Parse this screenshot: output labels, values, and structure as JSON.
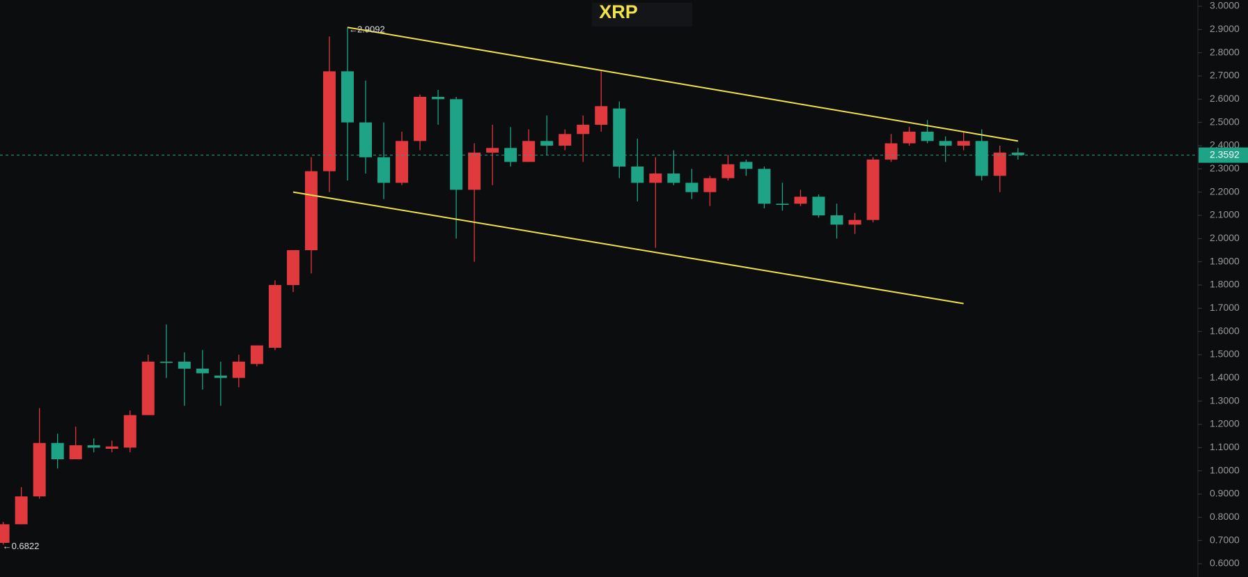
{
  "chart_data": {
    "type": "candlestick",
    "title": "XRP",
    "open": [
      0.69,
      0.77,
      0.89,
      1.12,
      1.05,
      1.11,
      1.095,
      1.1,
      1.24,
      1.47,
      1.47,
      1.44,
      1.41,
      1.4,
      1.46,
      1.53,
      1.8,
      1.95,
      2.29,
      2.72,
      2.5,
      2.35,
      2.24,
      2.42,
      2.61,
      2.6,
      2.21,
      2.37,
      2.39,
      2.33,
      2.42,
      2.4,
      2.45,
      2.49,
      2.56,
      2.31,
      2.24,
      2.28,
      2.24,
      2.2,
      2.26,
      2.33,
      2.3,
      2.15,
      2.15,
      2.18,
      2.1,
      2.06,
      2.08,
      2.34,
      2.41,
      2.46,
      2.42,
      2.4,
      2.42,
      2.27,
      2.37
    ],
    "high": [
      0.78,
      0.93,
      1.27,
      1.16,
      1.19,
      1.14,
      1.13,
      1.26,
      1.5,
      1.63,
      1.51,
      1.52,
      1.47,
      1.5,
      1.54,
      1.82,
      1.95,
      2.35,
      2.87,
      2.9092,
      2.68,
      2.5,
      2.46,
      2.62,
      2.64,
      2.61,
      2.41,
      2.49,
      2.48,
      2.47,
      2.53,
      2.47,
      2.53,
      2.72,
      2.59,
      2.43,
      2.35,
      2.38,
      2.3,
      2.27,
      2.36,
      2.34,
      2.31,
      2.24,
      2.21,
      2.19,
      2.15,
      2.11,
      2.35,
      2.45,
      2.48,
      2.51,
      2.44,
      2.46,
      2.47,
      2.4,
      2.39
    ],
    "low": [
      0.6822,
      0.77,
      0.88,
      1.01,
      1.05,
      1.08,
      1.08,
      1.08,
      1.24,
      1.4,
      1.28,
      1.35,
      1.28,
      1.36,
      1.45,
      1.52,
      1.77,
      1.85,
      2.2,
      2.25,
      2.28,
      2.17,
      2.23,
      2.38,
      2.49,
      2.0,
      1.9,
      2.23,
      2.31,
      2.33,
      2.36,
      2.38,
      2.33,
      2.46,
      2.26,
      2.16,
      1.96,
      2.23,
      2.17,
      2.14,
      2.25,
      2.27,
      2.13,
      2.12,
      2.14,
      2.09,
      2.0,
      2.02,
      2.07,
      2.33,
      2.4,
      2.41,
      2.33,
      2.38,
      2.25,
      2.2,
      2.34
    ],
    "close": [
      0.77,
      0.89,
      1.12,
      1.05,
      1.11,
      1.1,
      1.105,
      1.24,
      1.47,
      1.465,
      1.44,
      1.42,
      1.4,
      1.47,
      1.54,
      1.8,
      1.95,
      2.29,
      2.72,
      2.5,
      2.35,
      2.24,
      2.42,
      2.61,
      2.6,
      2.21,
      2.37,
      2.39,
      2.33,
      2.42,
      2.4,
      2.45,
      2.49,
      2.57,
      2.31,
      2.24,
      2.28,
      2.24,
      2.2,
      2.26,
      2.32,
      2.3,
      2.15,
      2.145,
      2.18,
      2.1,
      2.06,
      2.08,
      2.34,
      2.41,
      2.46,
      2.42,
      2.4,
      2.42,
      2.27,
      2.37,
      2.3592
    ],
    "up_color": "#e0393e",
    "down_color": "#1fa386",
    "trendlines": [
      {
        "start": [
          19,
          2.9092
        ],
        "end": [
          56,
          2.42
        ],
        "color": "#f2e24a"
      },
      {
        "start": [
          16,
          2.2
        ],
        "end": [
          53,
          1.72
        ],
        "color": "#f2e24a"
      }
    ],
    "ylim": [
      0.6,
      3.0
    ],
    "yticks": [
      {
        "value": 0.6,
        "label": "0.6000"
      },
      {
        "value": 0.7,
        "label": "0.7000"
      },
      {
        "value": 0.8,
        "label": "0.8000"
      },
      {
        "value": 0.9,
        "label": "0.9000"
      },
      {
        "value": 1.0,
        "label": "1.0000"
      },
      {
        "value": 1.1,
        "label": "1.1000"
      },
      {
        "value": 1.2,
        "label": "1.2000"
      },
      {
        "value": 1.3,
        "label": "1.3000"
      },
      {
        "value": 1.4,
        "label": "1.4000"
      },
      {
        "value": 1.5,
        "label": "1.5000"
      },
      {
        "value": 1.6,
        "label": "1.6000"
      },
      {
        "value": 1.7,
        "label": "1.7000"
      },
      {
        "value": 1.8,
        "label": "1.8000"
      },
      {
        "value": 1.9,
        "label": "1.9000"
      },
      {
        "value": 2.0,
        "label": "2.0000"
      },
      {
        "value": 2.1,
        "label": "2.1000"
      },
      {
        "value": 2.2,
        "label": "2.2000"
      },
      {
        "value": 2.3,
        "label": "2.3000"
      },
      {
        "value": 2.4,
        "label": "2.4000"
      },
      {
        "value": 2.5,
        "label": "2.5000"
      },
      {
        "value": 2.6,
        "label": "2.6000"
      },
      {
        "value": 2.7,
        "label": "2.7000"
      },
      {
        "value": 2.8,
        "label": "2.8000"
      },
      {
        "value": 2.9,
        "label": "2.9000"
      },
      {
        "value": 3.0,
        "label": "3.0000"
      }
    ]
  }
}
